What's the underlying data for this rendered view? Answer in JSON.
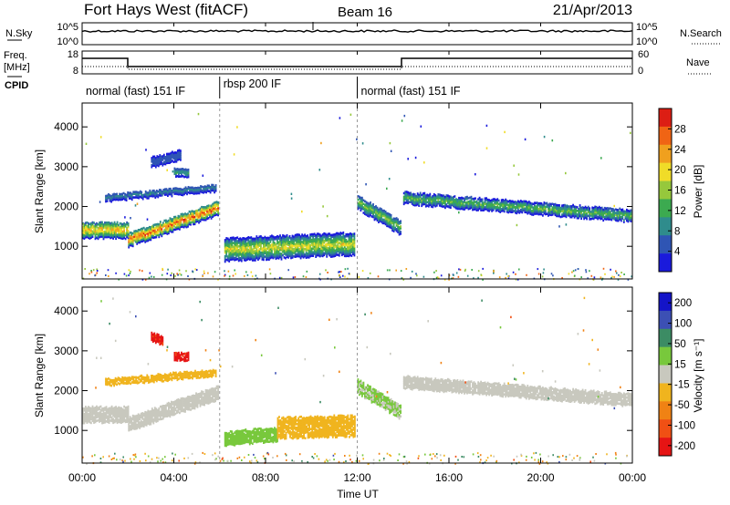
{
  "header": {
    "title": "Fort Hays West (fitACF)",
    "beam": "Beam 16",
    "date": "21/Apr/2013"
  },
  "aux_panels": {
    "nsky_label": "N.Sky",
    "nsearch_label": "N.Search",
    "noise_tick_top": "10^5",
    "noise_tick_bottom": "10^0",
    "freq_label": "Freq.",
    "freq_unit": "[MHz]",
    "freq_ticks": [
      "18",
      "8"
    ],
    "nave_label": "Nave",
    "nave_ticks": [
      "60",
      "0"
    ],
    "cpid_label": "CPID"
  },
  "cpid_segments": [
    {
      "label": "normal (fast) 151 IF",
      "start_hour": 0,
      "end_hour": 6
    },
    {
      "label": "rbsp 200 IF",
      "start_hour": 6,
      "end_hour": 12
    },
    {
      "label": "normal (fast) 151 IF",
      "start_hour": 12,
      "end_hour": 24
    }
  ],
  "chart_data": [
    {
      "type": "heatmap",
      "panel": "power",
      "ylabel": "Slant Range [km]",
      "yticks": [
        "1000",
        "2000",
        "3000",
        "4000"
      ],
      "ylim": [
        180,
        4600
      ],
      "xlim": [
        0,
        24
      ],
      "colorbar": {
        "label": "Power [dB]",
        "ticks": [
          "4",
          "8",
          "12",
          "16",
          "20",
          "24",
          "28"
        ],
        "range": [
          0,
          32
        ],
        "colors": [
          "#1a1adc",
          "#2f55b4",
          "#2f8c8c",
          "#3caa50",
          "#96c83c",
          "#f0dc28",
          "#f0a01e",
          "#f06414",
          "#dc1e14"
        ]
      },
      "echo_bands": [
        {
          "start_hour": 0.0,
          "end_hour": 2.0,
          "center_km": [
            1400,
            1400
          ],
          "width_km": 400,
          "peak_db": 24
        },
        {
          "start_hour": 2.0,
          "end_hour": 5.9,
          "center_km": [
            1150,
            1950
          ],
          "width_km": 350,
          "peak_db": 30
        },
        {
          "start_hour": 1.0,
          "end_hour": 5.8,
          "center_km": [
            2200,
            2450
          ],
          "width_km": 160,
          "peak_db": 8
        },
        {
          "start_hour": 4.0,
          "end_hour": 4.6,
          "center_km": [
            2850,
            2850
          ],
          "width_km": 200,
          "peak_db": 10
        },
        {
          "start_hour": 3.0,
          "end_hour": 4.3,
          "center_km": [
            3100,
            3300
          ],
          "width_km": 250,
          "peak_db": 5
        },
        {
          "start_hour": 6.2,
          "end_hour": 11.9,
          "center_km": [
            900,
            1050
          ],
          "width_km": 550,
          "peak_db": 20
        },
        {
          "start_hour": 12.0,
          "end_hour": 13.9,
          "center_km": [
            2100,
            1450
          ],
          "width_km": 350,
          "peak_db": 16
        },
        {
          "start_hour": 14.0,
          "end_hour": 23.9,
          "center_km": [
            2200,
            1750
          ],
          "width_km": 280,
          "peak_db": 14
        }
      ]
    },
    {
      "type": "heatmap",
      "panel": "velocity",
      "ylabel": "Slant Range [km]",
      "yticks": [
        "1000",
        "2000",
        "3000",
        "4000"
      ],
      "ylim": [
        180,
        4600
      ],
      "xlim": [
        0,
        24
      ],
      "xlabel": "Time UT",
      "xticks": [
        "00:00",
        "04:00",
        "08:00",
        "12:00",
        "16:00",
        "20:00",
        "00:00"
      ],
      "colorbar": {
        "label": "Velocity [m s⁻¹]",
        "ticks": [
          "200",
          "100",
          "50",
          "15",
          "-15",
          "-50",
          "-100",
          "-200"
        ],
        "range": [
          -250,
          250
        ],
        "colors": [
          "#1414c8",
          "#3c50b4",
          "#3c8c64",
          "#78c83c",
          "#c8c8be",
          "#f0b41e",
          "#f08214",
          "#f05014",
          "#e61414"
        ]
      },
      "echo_bands": [
        {
          "start_hour": 0.0,
          "end_hour": 2.0,
          "center_km": [
            1400,
            1400
          ],
          "width_km": 400,
          "vel": 0
        },
        {
          "start_hour": 2.0,
          "end_hour": 5.9,
          "center_km": [
            1150,
            1950
          ],
          "width_km": 350,
          "vel": 0
        },
        {
          "start_hour": 1.0,
          "end_hour": 5.8,
          "center_km": [
            2200,
            2450
          ],
          "width_km": 160,
          "vel": -40
        },
        {
          "start_hour": 4.0,
          "end_hour": 4.6,
          "center_km": [
            2850,
            2850
          ],
          "width_km": 200,
          "vel": -200
        },
        {
          "start_hour": 3.0,
          "end_hour": 3.5,
          "center_km": [
            3350,
            3250
          ],
          "width_km": 220,
          "vel": -200
        },
        {
          "start_hour": 6.2,
          "end_hour": 8.5,
          "center_km": [
            800,
            900
          ],
          "width_km": 350,
          "vel": 40
        },
        {
          "start_hour": 8.5,
          "end_hour": 11.9,
          "center_km": [
            1050,
            1100
          ],
          "width_km": 500,
          "vel": -45
        },
        {
          "start_hour": 12.0,
          "end_hour": 13.9,
          "center_km": [
            2100,
            1450
          ],
          "width_km": 350,
          "vel": 30
        },
        {
          "start_hour": 14.0,
          "end_hour": 23.9,
          "center_km": [
            2200,
            1750
          ],
          "width_km": 280,
          "vel": 0
        }
      ]
    }
  ]
}
